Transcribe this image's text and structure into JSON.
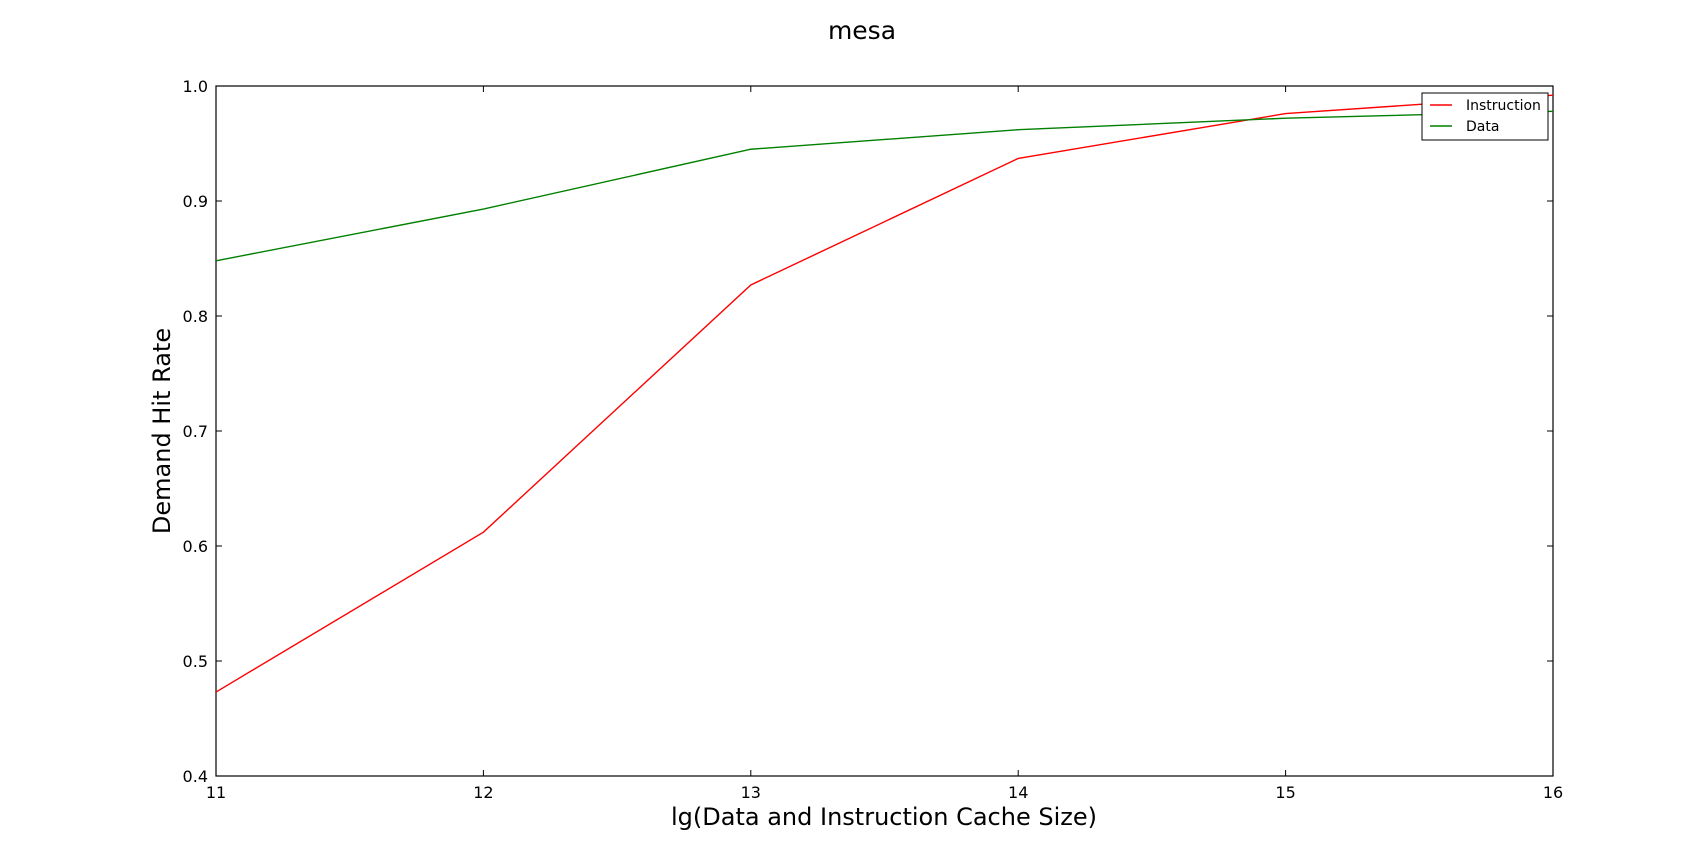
{
  "chart_data": {
    "type": "line",
    "title": "mesa",
    "xlabel": "lg(Data and Instruction Cache Size)",
    "ylabel": "Demand Hit Rate",
    "xlim": [
      11,
      16
    ],
    "ylim": [
      0.4,
      1.0
    ],
    "xticks": [
      "11",
      "12",
      "13",
      "14",
      "15",
      "16"
    ],
    "yticks": [
      "0.4",
      "0.5",
      "0.6",
      "0.7",
      "0.8",
      "0.9",
      "1.0"
    ],
    "grid": false,
    "legend_position": "top-right",
    "x": [
      11,
      12,
      13,
      14,
      15,
      16
    ],
    "series": [
      {
        "name": "Instruction",
        "color": "#ff0000",
        "values": [
          0.473,
          0.612,
          0.827,
          0.937,
          0.976,
          0.992
        ]
      },
      {
        "name": "Data",
        "color": "#008000",
        "values": [
          0.848,
          0.893,
          0.945,
          0.962,
          0.972,
          0.978
        ]
      }
    ]
  }
}
